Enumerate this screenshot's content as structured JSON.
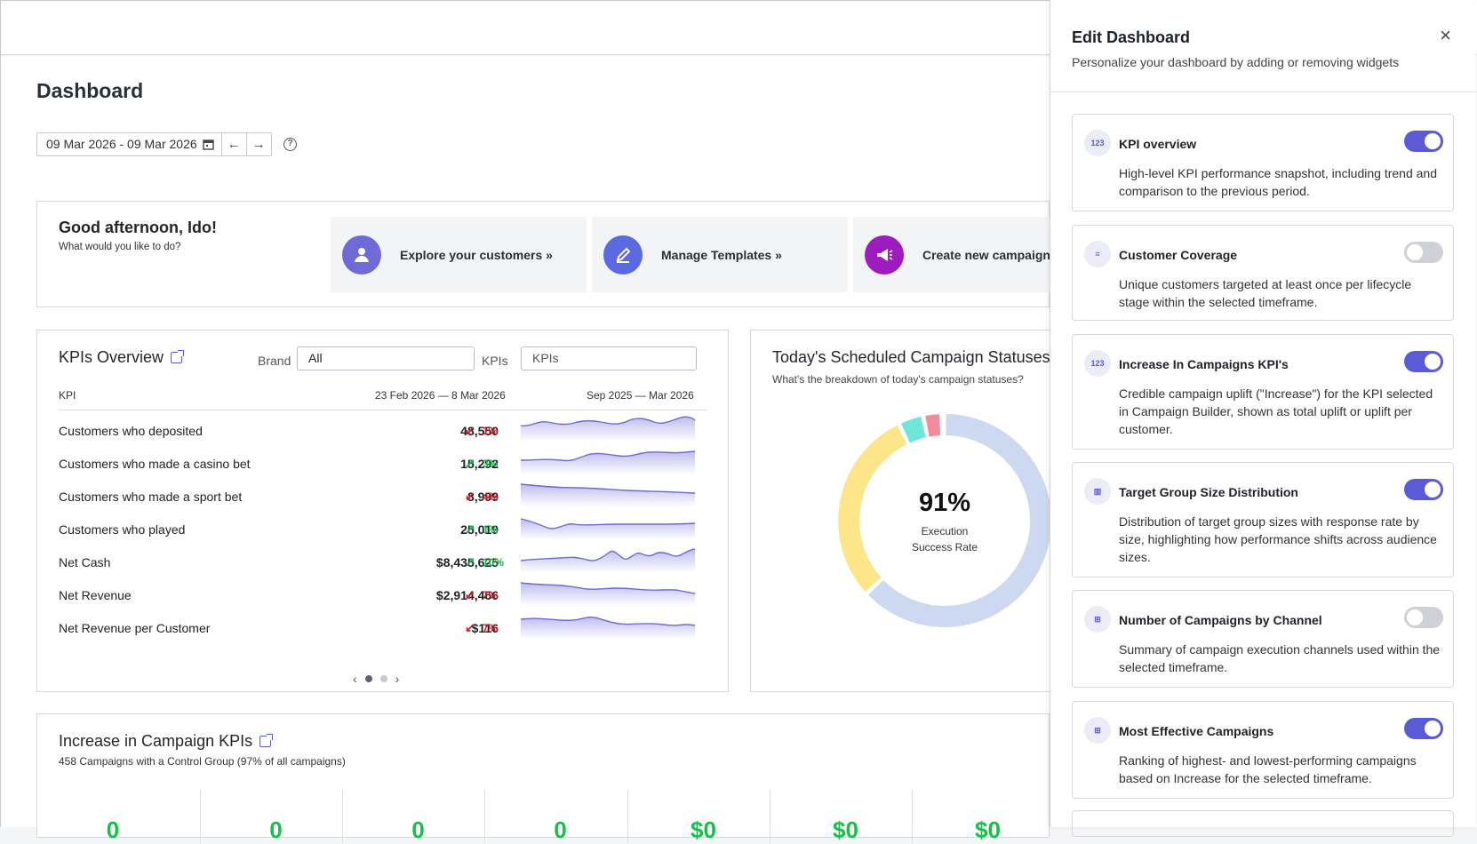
{
  "page": {
    "title": "Dashboard",
    "date_range": "09 Mar 2026 - 09 Mar 2026",
    "help_icon": "?"
  },
  "greeting": {
    "title": "Good afternoon, Ido!",
    "subtitle": "What would you like to do?",
    "actions": [
      {
        "label": "Explore your customers",
        "icon": "user-icon",
        "color": "#6e6ad8"
      },
      {
        "label": "Manage Templates",
        "icon": "edit-icon",
        "color": "#5b6ae0"
      },
      {
        "label": "Create new campaign",
        "icon": "megaphone-icon",
        "color": "#9c1cc0"
      }
    ]
  },
  "kpis": {
    "title": "KPIs Overview",
    "brand_label": "Brand",
    "brand_value": "All",
    "kpis_label": "KPIs",
    "kpis_placeholder": "KPIs",
    "col_kpi": "KPI",
    "col_period": "23 Feb 2026 — 8 Mar 2026",
    "col_trend": "Sep 2025 — Mar 2026",
    "rows": [
      {
        "name": "Customers who deposited",
        "value": "48,550",
        "direction": "down",
        "pct": "1%"
      },
      {
        "name": "Customers who made a casino bet",
        "value": "15,292",
        "direction": "up",
        "pct": "3%"
      },
      {
        "name": "Customers who made a sport bet",
        "value": "8,999",
        "direction": "down",
        "pct": "4%"
      },
      {
        "name": "Customers who played",
        "value": "25,019",
        "direction": "up",
        "pct": "1%"
      },
      {
        "name": "Net Cash",
        "value": "$8,435,625",
        "direction": "up",
        "pct": "10%"
      },
      {
        "name": "Net Revenue",
        "value": "$2,914,466",
        "direction": "down",
        "pct": "7%"
      },
      {
        "name": "Net Revenue per Customer",
        "value": "$116",
        "direction": "down",
        "pct": "7%"
      }
    ],
    "page_count": 2,
    "active_page": 1
  },
  "statuses": {
    "title": "Today's Scheduled Campaign Statuses",
    "subtitle": "What's the breakdown of today's campaign statuses?",
    "rate": "91%",
    "rate_label_1": "Execution",
    "rate_label_2": "Success Rate",
    "colors": {
      "success": "#cdd9f0",
      "pending": "#fde68a",
      "teal": "#6ee7d8",
      "error": "#f48a98"
    }
  },
  "increase": {
    "title": "Increase in Campaign KPIs",
    "subtitle": "458 Campaigns with a Control Group (97% of all campaigns)",
    "values": [
      "0",
      "0",
      "0",
      "0",
      "$0",
      "$0",
      "$0"
    ]
  },
  "panel": {
    "title": "Edit Dashboard",
    "subtitle": "Personalize your dashboard by adding or removing widgets",
    "close_icon": "×",
    "widgets": [
      {
        "title": "KPI overview",
        "desc": "High-level KPI performance snapshot, including trend and comparison to the previous period.",
        "icon": "123",
        "enabled": true
      },
      {
        "title": "Customer Coverage",
        "desc": "Unique customers targeted at least once per lifecycle stage within the selected timeframe.",
        "icon": "≡",
        "enabled": false
      },
      {
        "title": "Increase In Campaigns KPI's",
        "desc": "Credible campaign uplift (\"Increase\") for the KPI selected in Campaign Builder, shown as total uplift or uplift per customer.",
        "icon": "123",
        "enabled": true
      },
      {
        "title": "Target Group Size Distribution",
        "desc": "Distribution of target group sizes with response rate by size, highlighting how performance shifts across audience sizes.",
        "icon": "▥",
        "enabled": true
      },
      {
        "title": "Number of Campaigns by Channel",
        "desc": "Summary of campaign execution channels used within the selected timeframe.",
        "icon": "⊞",
        "enabled": false
      },
      {
        "title": "Most Effective Campaigns",
        "desc": "Ranking of highest- and lowest-performing campaigns based on Increase for the selected timeframe.",
        "icon": "⊞",
        "enabled": true
      }
    ]
  }
}
